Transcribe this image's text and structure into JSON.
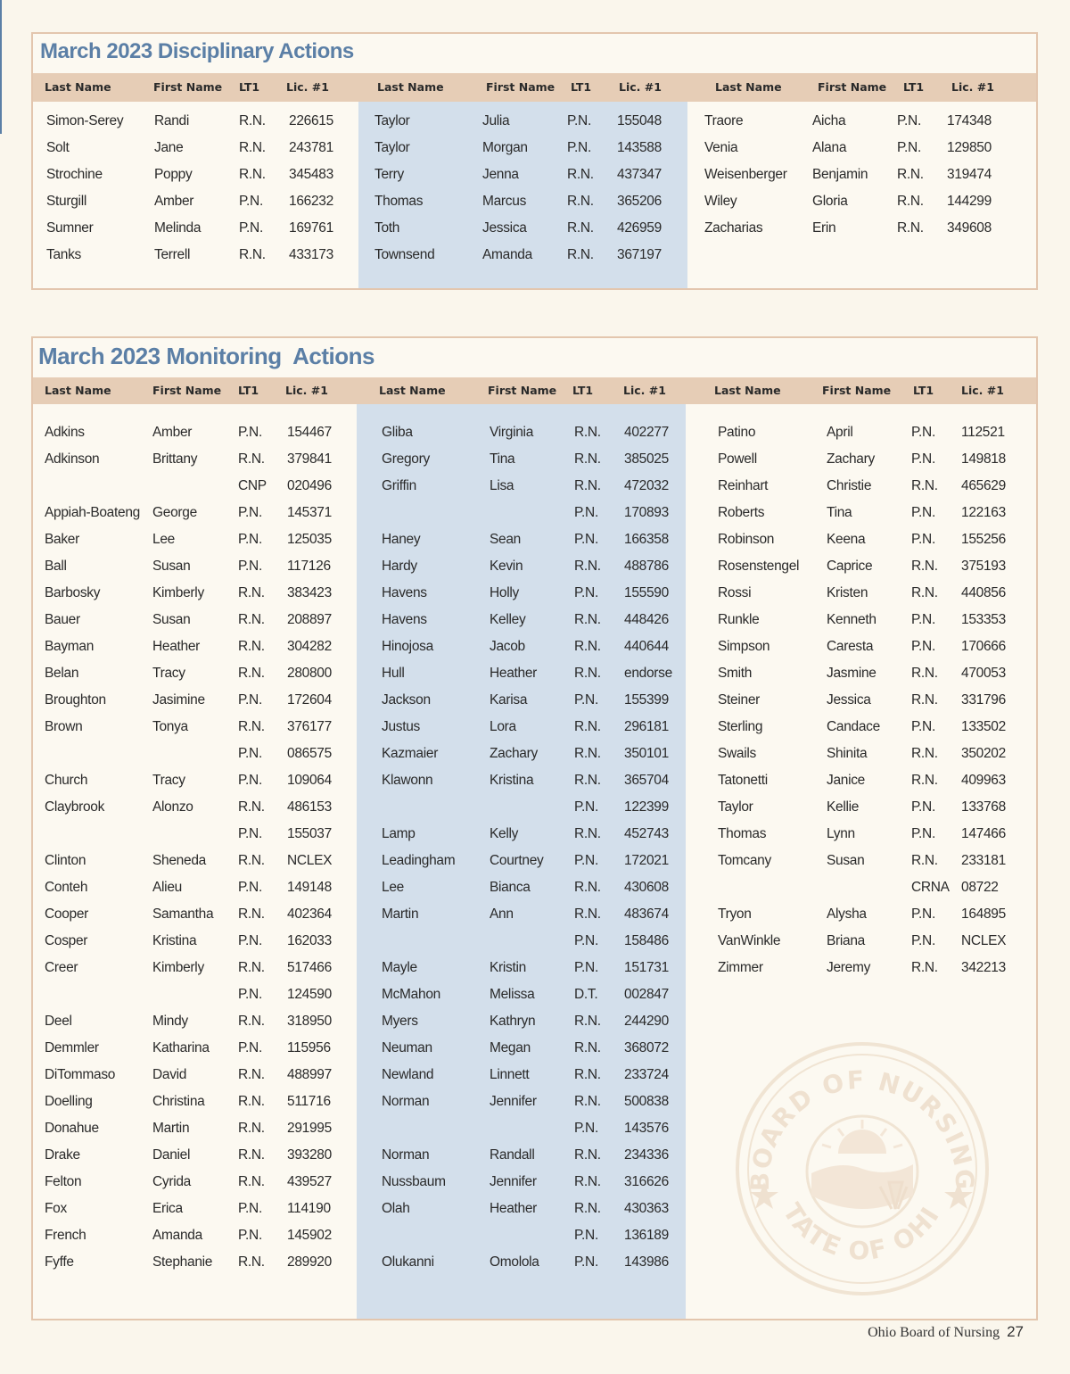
{
  "disciplinary": {
    "title": "March 2023 Disciplinary Actions",
    "headers": [
      "Last Name",
      "First Name",
      "LT1",
      "Lic. #1"
    ],
    "columns": [
      [
        [
          "Simon-Serey",
          "Randi",
          "R.N.",
          "226615"
        ],
        [
          "Solt",
          "Jane",
          "R.N.",
          "243781"
        ],
        [
          "Strochine",
          "Poppy",
          "R.N.",
          "345483"
        ],
        [
          "Sturgill",
          "Amber",
          "P.N.",
          "166232"
        ],
        [
          "Sumner",
          "Melinda",
          "P.N.",
          "169761"
        ],
        [
          "Tanks",
          "Terrell",
          "R.N.",
          "433173"
        ]
      ],
      [
        [
          "Taylor",
          "Julia",
          "P.N.",
          "155048"
        ],
        [
          "Taylor",
          "Morgan",
          "P.N.",
          "143588"
        ],
        [
          "Terry",
          "Jenna",
          "R.N.",
          "437347"
        ],
        [
          "Thomas",
          "Marcus",
          "R.N.",
          "365206"
        ],
        [
          "Toth",
          "Jessica",
          "R.N.",
          "426959"
        ],
        [
          "Townsend",
          "Amanda",
          "R.N.",
          "367197"
        ]
      ],
      [
        [
          "Traore",
          "Aicha",
          "P.N.",
          "174348"
        ],
        [
          "Venia",
          "Alana",
          "P.N.",
          "129850"
        ],
        [
          "Weisenberger",
          "Benjamin",
          "R.N.",
          "319474"
        ],
        [
          "Wiley",
          "Gloria",
          "R.N.",
          "144299"
        ],
        [
          "Zacharias",
          "Erin",
          "R.N.",
          "349608"
        ]
      ]
    ]
  },
  "monitoring": {
    "title": "March 2023 Monitoring  Actions",
    "headers": [
      "Last Name",
      "First Name",
      "LT1",
      "Lic. #1"
    ],
    "columns": [
      [
        [
          "Adkins",
          "Amber",
          "P.N.",
          "154467"
        ],
        [
          "Adkinson",
          "Brittany",
          "R.N.",
          "379841"
        ],
        [
          "",
          "",
          "CNP",
          "020496"
        ],
        [
          "Appiah-Boateng",
          "George",
          "P.N.",
          "145371"
        ],
        [
          "Baker",
          "Lee",
          "P.N.",
          "125035"
        ],
        [
          "Ball",
          "Susan",
          "P.N.",
          "117126"
        ],
        [
          "Barbosky",
          "Kimberly",
          "R.N.",
          "383423"
        ],
        [
          "Bauer",
          "Susan",
          "R.N.",
          "208897"
        ],
        [
          "Bayman",
          "Heather",
          "R.N.",
          "304282"
        ],
        [
          "Belan",
          "Tracy",
          "R.N.",
          "280800"
        ],
        [
          "Broughton",
          "Jasimine",
          "P.N.",
          "172604"
        ],
        [
          "Brown",
          "Tonya",
          "R.N.",
          "376177"
        ],
        [
          "",
          "",
          "P.N.",
          "086575"
        ],
        [
          "Church",
          "Tracy",
          "P.N.",
          "109064"
        ],
        [
          "Claybrook",
          "Alonzo",
          "R.N.",
          "486153"
        ],
        [
          "",
          "",
          "P.N.",
          "155037"
        ],
        [
          "Clinton",
          "Sheneda",
          "R.N.",
          "NCLEX"
        ],
        [
          "Conteh",
          "Alieu",
          "P.N.",
          "149148"
        ],
        [
          "Cooper",
          "Samantha",
          "R.N.",
          "402364"
        ],
        [
          "Cosper",
          "Kristina",
          "P.N.",
          "162033"
        ],
        [
          "Creer",
          "Kimberly",
          "R.N.",
          "517466"
        ],
        [
          "",
          "",
          "P.N.",
          "124590"
        ],
        [
          "Deel",
          "Mindy",
          "R.N.",
          "318950"
        ],
        [
          "Demmler",
          "Katharina",
          "P.N.",
          "115956"
        ],
        [
          "DiTommaso",
          "David",
          "R.N.",
          "488997"
        ],
        [
          "Doelling",
          "Christina",
          "R.N.",
          "511716"
        ],
        [
          "Donahue",
          "Martin",
          "R.N.",
          "291995"
        ],
        [
          "Drake",
          "Daniel",
          "R.N.",
          "393280"
        ],
        [
          "Felton",
          "Cyrida",
          "R.N.",
          "439527"
        ],
        [
          "Fox",
          "Erica",
          "P.N.",
          "114190"
        ],
        [
          "French",
          "Amanda",
          "P.N.",
          "145902"
        ],
        [
          "Fyffe",
          "Stephanie",
          "R.N.",
          "289920"
        ]
      ],
      [
        [
          "Gliba",
          "Virginia",
          "R.N.",
          "402277"
        ],
        [
          "Gregory",
          "Tina",
          "R.N.",
          "385025"
        ],
        [
          "Griffin",
          "Lisa",
          "R.N.",
          "472032"
        ],
        [
          "",
          "",
          "P.N.",
          "170893"
        ],
        [
          "Haney",
          "Sean",
          "P.N.",
          "166358"
        ],
        [
          "Hardy",
          "Kevin",
          "R.N.",
          "488786"
        ],
        [
          "Havens",
          "Holly",
          "P.N.",
          "155590"
        ],
        [
          "Havens",
          "Kelley",
          "R.N.",
          "448426"
        ],
        [
          "Hinojosa",
          "Jacob",
          "R.N.",
          "440644"
        ],
        [
          "Hull",
          "Heather",
          "R.N.",
          "endorse"
        ],
        [
          "Jackson",
          "Karisa",
          "P.N.",
          "155399"
        ],
        [
          "Justus",
          "Lora",
          "R.N.",
          "296181"
        ],
        [
          "Kazmaier",
          "Zachary",
          "R.N.",
          "350101"
        ],
        [
          "Klawonn",
          "Kristina",
          "R.N.",
          "365704"
        ],
        [
          "",
          "",
          "P.N.",
          "122399"
        ],
        [
          "Lamp",
          "Kelly",
          "R.N.",
          "452743"
        ],
        [
          "Leadingham",
          "Courtney",
          "P.N.",
          "172021"
        ],
        [
          "Lee",
          "Bianca",
          "R.N.",
          "430608"
        ],
        [
          "Martin",
          "Ann",
          "R.N.",
          "483674"
        ],
        [
          "",
          "",
          "P.N.",
          "158486"
        ],
        [
          "Mayle",
          "Kristin",
          "P.N.",
          "151731"
        ],
        [
          "McMahon",
          "Melissa",
          "D.T.",
          "002847"
        ],
        [
          "Myers",
          "Kathryn",
          "R.N.",
          "244290"
        ],
        [
          "Neuman",
          "Megan",
          "R.N.",
          "368072"
        ],
        [
          "Newland",
          "Linnett",
          "R.N.",
          "233724"
        ],
        [
          "Norman",
          "Jennifer",
          "R.N.",
          "500838"
        ],
        [
          "",
          "",
          "P.N.",
          "143576"
        ],
        [
          "Norman",
          "Randall",
          "R.N.",
          "234336"
        ],
        [
          "Nussbaum",
          "Jennifer",
          "R.N.",
          "316626"
        ],
        [
          "Olah",
          "Heather",
          "R.N.",
          "430363"
        ],
        [
          "",
          "",
          "P.N.",
          "136189"
        ],
        [
          "Olukanni",
          "Omolola",
          "P.N.",
          "143986"
        ]
      ],
      [
        [
          "Patino",
          "April",
          "P.N.",
          "112521"
        ],
        [
          "Powell",
          "Zachary",
          "P.N.",
          "149818"
        ],
        [
          "Reinhart",
          "Christie",
          "R.N.",
          "465629"
        ],
        [
          "Roberts",
          "Tina",
          "P.N.",
          "122163"
        ],
        [
          "Robinson",
          "Keena",
          "P.N.",
          "155256"
        ],
        [
          "Rosenstengel",
          "Caprice",
          "R.N.",
          "375193"
        ],
        [
          "Rossi",
          "Kristen",
          "R.N.",
          "440856"
        ],
        [
          "Runkle",
          "Kenneth",
          "P.N.",
          "153353"
        ],
        [
          "Simpson",
          "Caresta",
          "P.N.",
          "170666"
        ],
        [
          "Smith",
          "Jasmine",
          "R.N.",
          "470053"
        ],
        [
          "Steiner",
          "Jessica",
          "R.N.",
          "331796"
        ],
        [
          "Sterling",
          "Candace",
          "P.N.",
          "133502"
        ],
        [
          "Swails",
          "Shinita",
          "R.N.",
          "350202"
        ],
        [
          "Tatonetti",
          "Janice",
          "R.N.",
          "409963"
        ],
        [
          "Taylor",
          "Kellie",
          "P.N.",
          "133768"
        ],
        [
          "Thomas",
          "Lynn",
          "P.N.",
          "147466"
        ],
        [
          "Tomcany",
          "Susan",
          "R.N.",
          "233181"
        ],
        [
          "",
          "",
          "CRNA",
          "08722"
        ],
        [
          "Tryon",
          "Alysha",
          "P.N.",
          "164895"
        ],
        [
          "VanWinkle",
          "Briana",
          "P.N.",
          "NCLEX"
        ],
        [
          "Zimmer",
          "Jeremy",
          "R.N.",
          "342213"
        ]
      ]
    ]
  },
  "seal": {
    "top_text": "BOARD OF NURSING",
    "bottom_text": "STATE OF OHIO",
    "icon": "ohio-seal-icon"
  },
  "footer": {
    "publication": "Ohio Board of Nursing",
    "page_number": "27"
  }
}
